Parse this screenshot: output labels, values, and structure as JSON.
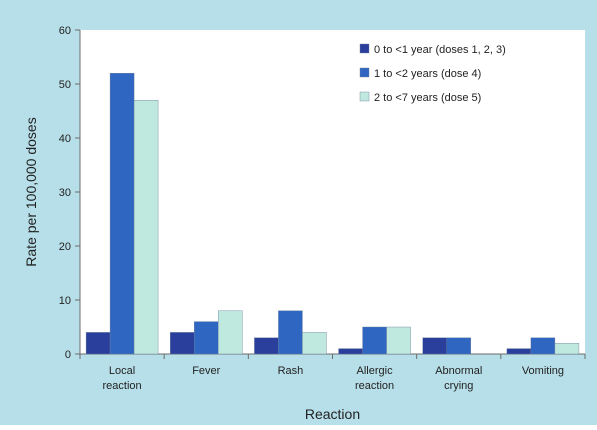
{
  "chart_data": {
    "type": "bar",
    "title": "",
    "xlabel": "Reaction",
    "ylabel": "Rate per 100,000 doses",
    "ylim": [
      0,
      60
    ],
    "yticks": [
      0,
      10,
      20,
      30,
      40,
      50,
      60
    ],
    "categories": [
      [
        "Local",
        "reaction"
      ],
      [
        "Fever"
      ],
      [
        "Rash"
      ],
      [
        "Allergic",
        "reaction"
      ],
      [
        "Abnormal",
        "crying"
      ],
      [
        "Vomiting"
      ]
    ],
    "series": [
      {
        "name": "0 to <1 year (doses 1, 2, 3)",
        "color": "#2a3f9c",
        "values": [
          4,
          4,
          3,
          1,
          3,
          1
        ]
      },
      {
        "name": "1 to <2 years (dose 4)",
        "color": "#2f66c2",
        "values": [
          52,
          6,
          8,
          5,
          3,
          3
        ]
      },
      {
        "name": "2 to <7 years (dose 5)",
        "color": "#bfe8de",
        "values": [
          47,
          8,
          4,
          5,
          0,
          2
        ]
      }
    ],
    "legend_position": "top-right",
    "grid": false,
    "colors": {
      "background": "#b7dfe9",
      "plot_area": "#ffffff",
      "axis": "#6b6b6b",
      "text": "#222222"
    }
  }
}
